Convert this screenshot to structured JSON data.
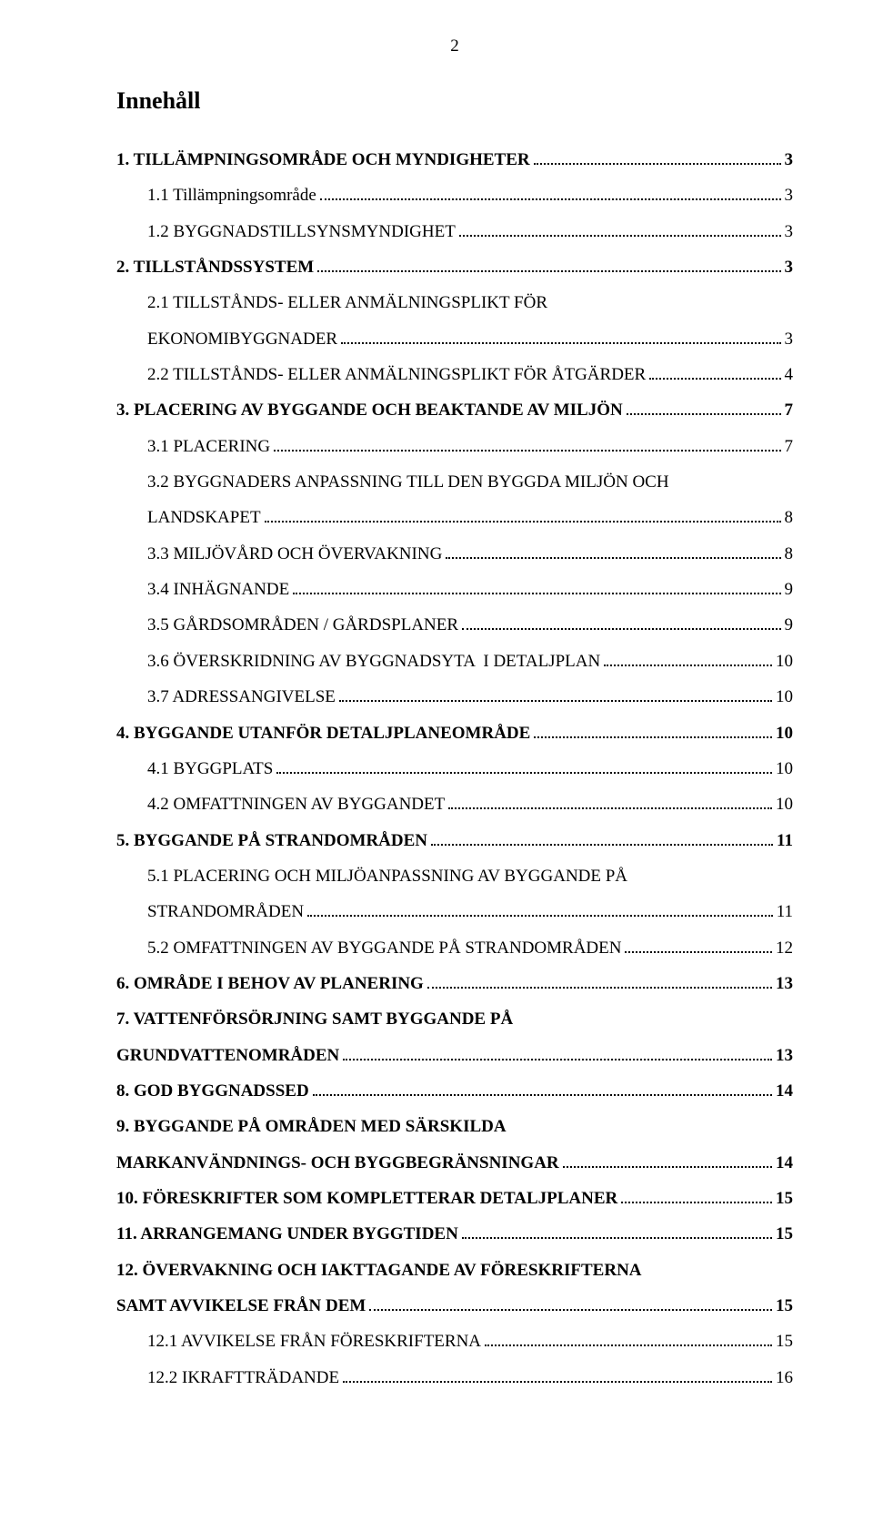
{
  "page_number": "2",
  "title": "Innehåll",
  "entries": [
    {
      "label": "1. TILLÄMPNINGSOMRÅDE OCH MYNDIGHETER",
      "page": "3",
      "bold": true,
      "indent": 0,
      "wrap": null
    },
    {
      "label": "1.1 Tillämpningsområde",
      "page": "3",
      "bold": false,
      "indent": 1,
      "wrap": null
    },
    {
      "label": "1.2 BYGGNADSTILLSYNSMYNDIGHET",
      "page": "3",
      "bold": false,
      "indent": 1,
      "wrap": null
    },
    {
      "label": "2. TILLSTÅNDSSYSTEM",
      "page": "3",
      "bold": true,
      "indent": 0,
      "wrap": null
    },
    {
      "label": "EKONOMIBYGGNADER",
      "page": "3",
      "bold": false,
      "indent": 1,
      "wrap": "2.1 TILLSTÅNDS- ELLER ANMÄLNINGSPLIKT FÖR"
    },
    {
      "label": "2.2 TILLSTÅNDS- ELLER ANMÄLNINGSPLIKT FÖR ÅTGÄRDER",
      "page": "4",
      "bold": false,
      "indent": 1,
      "wrap": null
    },
    {
      "label": "3. PLACERING AV BYGGANDE OCH BEAKTANDE AV MILJÖN",
      "page": "7",
      "bold": true,
      "indent": 0,
      "wrap": null
    },
    {
      "label": "3.1 PLACERING",
      "page": "7",
      "bold": false,
      "indent": 1,
      "wrap": null
    },
    {
      "label": "LANDSKAPET",
      "page": "8",
      "bold": false,
      "indent": 1,
      "wrap": "3.2 BYGGNADERS ANPASSNING TILL DEN BYGGDA MILJÖN OCH"
    },
    {
      "label": "3.3 MILJÖVÅRD OCH ÖVERVAKNING",
      "page": "8",
      "bold": false,
      "indent": 1,
      "wrap": null
    },
    {
      "label": "3.4 INHÄGNANDE",
      "page": "9",
      "bold": false,
      "indent": 1,
      "wrap": null
    },
    {
      "label": "3.5 GÅRDSOMRÅDEN / GÅRDSPLANER",
      "page": "9",
      "bold": false,
      "indent": 1,
      "wrap": null
    },
    {
      "label": "3.6 ÖVERSKRIDNING AV BYGGNADSYTA  I DETALJPLAN",
      "page": "10",
      "bold": false,
      "indent": 1,
      "wrap": null
    },
    {
      "label": "3.7 ADRESSANGIVELSE",
      "page": "10",
      "bold": false,
      "indent": 1,
      "wrap": null
    },
    {
      "label": "4. BYGGANDE UTANFÖR DETALJPLANEOMRÅDE",
      "page": "10",
      "bold": true,
      "indent": 0,
      "wrap": null
    },
    {
      "label": "4.1 BYGGPLATS",
      "page": "10",
      "bold": false,
      "indent": 1,
      "wrap": null
    },
    {
      "label": "4.2 OMFATTNINGEN AV BYGGANDET",
      "page": "10",
      "bold": false,
      "indent": 1,
      "wrap": null
    },
    {
      "label": "5. BYGGANDE PÅ STRANDOMRÅDEN",
      "page": "11",
      "bold": true,
      "indent": 0,
      "wrap": null
    },
    {
      "label": "STRANDOMRÅDEN",
      "page": "11",
      "bold": false,
      "indent": 1,
      "wrap": "5.1 PLACERING OCH MILJÖANPASSNING AV BYGGANDE PÅ"
    },
    {
      "label": "5.2 OMFATTNINGEN AV BYGGANDE PÅ STRANDOMRÅDEN",
      "page": "12",
      "bold": false,
      "indent": 1,
      "wrap": null
    },
    {
      "label": "6. OMRÅDE I BEHOV AV PLANERING",
      "page": "13",
      "bold": true,
      "indent": 0,
      "wrap": null
    },
    {
      "label": "GRUNDVATTENOMRÅDEN",
      "page": "13",
      "bold": true,
      "indent": 0,
      "wrap": "7. VATTENFÖRSÖRJNING SAMT BYGGANDE PÅ"
    },
    {
      "label": "8. GOD BYGGNADSSED",
      "page": "14",
      "bold": true,
      "indent": 0,
      "wrap": null
    },
    {
      "label": "MARKANVÄNDNINGS- OCH BYGGBEGRÄNSNINGAR",
      "page": "14",
      "bold": true,
      "indent": 0,
      "wrap": "9. BYGGANDE PÅ OMRÅDEN MED SÄRSKILDA"
    },
    {
      "label": "10. FÖRESKRIFTER SOM KOMPLETTERAR DETALJPLANER",
      "page": "15",
      "bold": true,
      "indent": 0,
      "wrap": null
    },
    {
      "label": "11. ARRANGEMANG UNDER BYGGTIDEN",
      "page": "15",
      "bold": true,
      "indent": 0,
      "wrap": null
    },
    {
      "label": "SAMT AVVIKELSE FRÅN DEM",
      "page": "15",
      "bold": true,
      "indent": 0,
      "wrap": "12. ÖVERVAKNING OCH IAKTTAGANDE AV FÖRESKRIFTERNA"
    },
    {
      "label": "12.1 AVVIKELSE FRÅN FÖRESKRIFTERNA",
      "page": "15",
      "bold": false,
      "indent": 1,
      "wrap": null
    },
    {
      "label": "12.2 IKRAFTTRÄDANDE",
      "page": "16",
      "bold": false,
      "indent": 1,
      "wrap": null
    }
  ]
}
